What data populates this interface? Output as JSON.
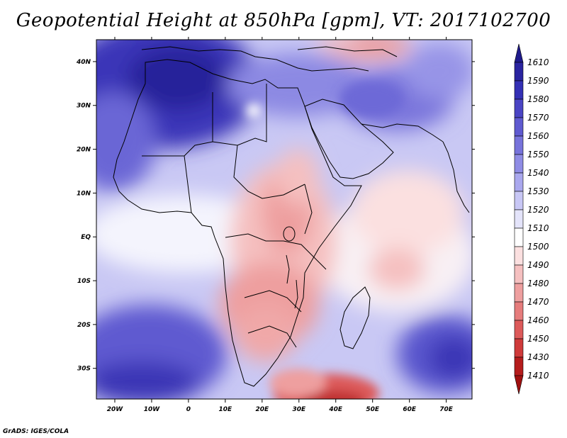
{
  "title": "Geopotential Height at 850hPa [gpm], VT: 2017102700",
  "footer": "GrADS: IGES/COLA",
  "map": {
    "lon_range": [
      -25,
      77
    ],
    "lat_range": [
      -37,
      45
    ],
    "x_tick_labels": [
      "20W",
      "10W",
      "0",
      "10E",
      "20E",
      "30E",
      "40E",
      "50E",
      "60E",
      "70E"
    ],
    "y_tick_labels": [
      "40N",
      "30N",
      "20N",
      "10N",
      "EQ",
      "10S",
      "20S",
      "30S"
    ]
  },
  "colorbar": {
    "labels": [
      "1610",
      "1590",
      "1580",
      "1570",
      "1560",
      "1550",
      "1540",
      "1530",
      "1520",
      "1510",
      "1500",
      "1490",
      "1480",
      "1470",
      "1460",
      "1450",
      "1430",
      "1410"
    ],
    "colors": [
      "#1f1a8c",
      "#2a24a0",
      "#3430b5",
      "#4a44c4",
      "#5f5ad0",
      "#7773db",
      "#8f8ce5",
      "#aaa8ee",
      "#c8c7f5",
      "#e4e4fa",
      "#ffffff",
      "#fbe0e0",
      "#f5c0c0",
      "#ee9f9f",
      "#e67c7c",
      "#dd5a5a",
      "#cf3a3a",
      "#b51c1c",
      "#a01010"
    ]
  },
  "features": {
    "low_center": "southern Africa",
    "high_center": "north-west Africa"
  }
}
